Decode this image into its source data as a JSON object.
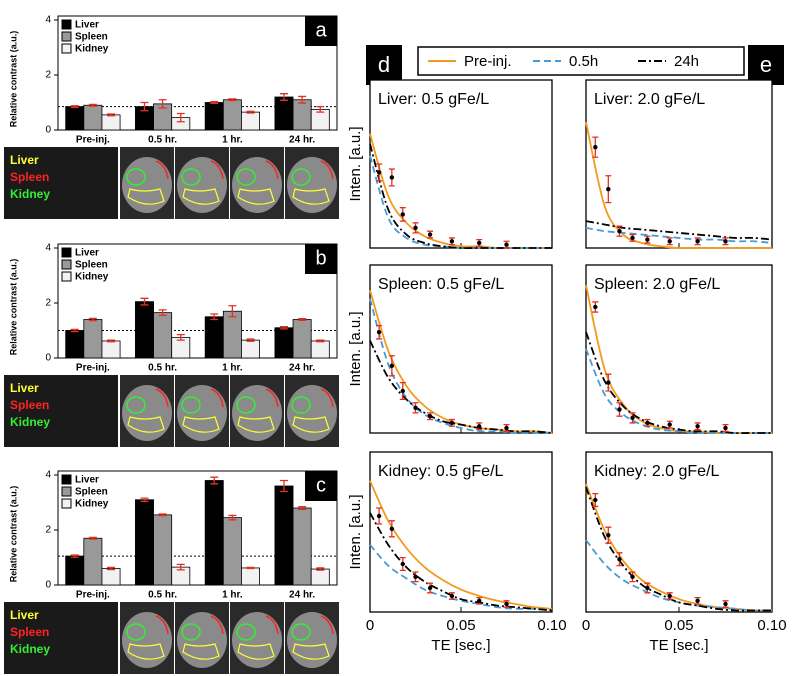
{
  "chart_data": [
    {
      "type": "bar",
      "panel_label": "a",
      "ylabel": "Relative contrast (a.u.)",
      "categories": [
        "Pre-inj.",
        "0.5 hr.",
        "1 hr.",
        "24 hr."
      ],
      "series": [
        {
          "name": "Liver",
          "color": "#000000",
          "values": [
            0.85,
            0.85,
            1.0,
            1.2
          ],
          "errors": [
            0.03,
            0.15,
            0.03,
            0.12
          ]
        },
        {
          "name": "Spleen",
          "color": "#999999",
          "values": [
            0.9,
            0.95,
            1.1,
            1.1
          ],
          "errors": [
            0.03,
            0.15,
            0.03,
            0.12
          ]
        },
        {
          "name": "Kidney",
          "color": "#f2f2f2",
          "values": [
            0.55,
            0.45,
            0.65,
            0.75
          ],
          "errors": [
            0.03,
            0.15,
            0.03,
            0.1
          ]
        }
      ],
      "reference_line": 0.85,
      "ylim": [
        0,
        4
      ],
      "yticks": [
        0,
        2,
        4
      ],
      "error_color": "#e53020",
      "image_labels": [
        {
          "text": "Liver",
          "color": "#ffff33"
        },
        {
          "text": "Spleen",
          "color": "#ff2222"
        },
        {
          "text": "Kidney",
          "color": "#33ee33"
        }
      ]
    },
    {
      "type": "bar",
      "panel_label": "b",
      "ylabel": "Relative contrast (a.u.)",
      "categories": [
        "Pre-inj.",
        "0.5 hr.",
        "1 hr.",
        "24 hr."
      ],
      "series": [
        {
          "name": "Liver",
          "color": "#000000",
          "values": [
            1.0,
            2.05,
            1.5,
            1.1
          ],
          "errors": [
            0.04,
            0.12,
            0.1,
            0.04
          ]
        },
        {
          "name": "Spleen",
          "color": "#999999",
          "values": [
            1.4,
            1.65,
            1.7,
            1.4
          ],
          "errors": [
            0.04,
            0.1,
            0.2,
            0.03
          ]
        },
        {
          "name": "Kidney",
          "color": "#f2f2f2",
          "values": [
            0.62,
            0.75,
            0.65,
            0.62
          ],
          "errors": [
            0.03,
            0.1,
            0.04,
            0.03
          ]
        }
      ],
      "reference_line": 1.0,
      "ylim": [
        0,
        4
      ],
      "yticks": [
        0,
        2,
        4
      ],
      "error_color": "#e53020",
      "image_labels": [
        {
          "text": "Liver",
          "color": "#ffff33"
        },
        {
          "text": "Spleen",
          "color": "#ff2222"
        },
        {
          "text": "Kidney",
          "color": "#33ee33"
        }
      ]
    },
    {
      "type": "bar",
      "panel_label": "c",
      "ylabel": "Relative contrast (a.u.)",
      "categories": [
        "Pre-inj.",
        "0.5 hr.",
        "1 hr.",
        "24 hr."
      ],
      "series": [
        {
          "name": "Liver",
          "color": "#000000",
          "values": [
            1.05,
            3.1,
            3.8,
            3.6
          ],
          "errors": [
            0.04,
            0.06,
            0.12,
            0.2
          ]
        },
        {
          "name": "Spleen",
          "color": "#999999",
          "values": [
            1.7,
            2.55,
            2.45,
            2.8
          ],
          "errors": [
            0.03,
            0.03,
            0.08,
            0.05
          ]
        },
        {
          "name": "Kidney",
          "color": "#f2f2f2",
          "values": [
            0.6,
            0.65,
            0.62,
            0.58
          ],
          "errors": [
            0.04,
            0.1,
            0.02,
            0.04
          ]
        }
      ],
      "reference_line": 1.05,
      "ylim": [
        0,
        4
      ],
      "yticks": [
        0,
        2,
        4
      ],
      "error_color": "#e53020",
      "image_labels": [
        {
          "text": "Liver",
          "color": "#ffff33"
        },
        {
          "text": "Spleen",
          "color": "#ff2222"
        },
        {
          "text": "Kidney",
          "color": "#33ee33"
        }
      ]
    },
    {
      "type": "line",
      "panel_labels": [
        "d",
        "e"
      ],
      "xlabel": "TE [sec.]",
      "ylabel": "Inten. [a.u.]",
      "xlim": [
        0,
        0.1
      ],
      "xticks": [
        0,
        0.05,
        {
          "value": 0.1,
          "label": "0.10"
        }
      ],
      "ylim": [
        0,
        1
      ],
      "legend": [
        {
          "name": "Pre-inj.",
          "color": "#f39a1e",
          "dash": "solid"
        },
        {
          "name": "0.5h",
          "color": "#4a9ad4",
          "dash": "dashed"
        },
        {
          "name": "24h",
          "color": "#000000",
          "dash": "dashdot"
        }
      ],
      "point_color": "#000000",
      "error_color": "#e53020",
      "x": [
        0,
        0.01,
        0.02,
        0.03,
        0.04,
        0.05,
        0.06,
        0.07,
        0.08,
        0.09,
        0.1
      ],
      "points_x": [
        0.005,
        0.012,
        0.018,
        0.025,
        0.033,
        0.045,
        0.06,
        0.075
      ],
      "panels": [
        {
          "title": "Liver: 0.5 gFe/L",
          "curves": [
            [
              0.68,
              0.31,
              0.15,
              0.07,
              0.03,
              0.01,
              0.01,
              0,
              0,
              0,
              0
            ],
            [
              0.55,
              0.18,
              0.06,
              0.02,
              0.01,
              0,
              0,
              0,
              0,
              0,
              0
            ],
            [
              0.62,
              0.23,
              0.08,
              0.03,
              0.01,
              0,
              0,
              0,
              0,
              0,
              0
            ]
          ],
          "points": [
            0.45,
            0.42,
            0.2,
            0.12,
            0.08,
            0.04,
            0.03,
            0.02
          ],
          "errors": [
            0.05,
            0.05,
            0.04,
            0.03,
            0.02,
            0.02,
            0.02,
            0.02
          ]
        },
        {
          "title": "Liver: 2.0 gFe/L",
          "curves": [
            [
              0.75,
              0.25,
              0.08,
              0.03,
              0.01,
              0,
              0,
              0,
              0,
              0,
              0
            ],
            [
              0.12,
              0.1,
              0.09,
              0.08,
              0.07,
              0.06,
              0.05,
              0.05,
              0.04,
              0.04,
              0.03
            ],
            [
              0.16,
              0.14,
              0.12,
              0.11,
              0.1,
              0.09,
              0.08,
              0.07,
              0.06,
              0.06,
              0.05
            ]
          ],
          "points": [
            0.6,
            0.35,
            0.1,
            0.06,
            0.05,
            0.04,
            0.04,
            0.04
          ],
          "errors": [
            0.06,
            0.08,
            0.03,
            0.02,
            0.02,
            0.02,
            0.02,
            0.02
          ]
        },
        {
          "title": "Spleen: 0.5 gFe/L",
          "curves": [
            [
              0.85,
              0.49,
              0.28,
              0.16,
              0.09,
              0.05,
              0.03,
              0.02,
              0.01,
              0.01,
              0
            ],
            [
              0.8,
              0.41,
              0.21,
              0.11,
              0.06,
              0.03,
              0.01,
              0.01,
              0,
              0,
              0
            ],
            [
              0.55,
              0.33,
              0.2,
              0.12,
              0.07,
              0.05,
              0.03,
              0.02,
              0.01,
              0.01,
              0
            ]
          ],
          "points": [
            0.6,
            0.4,
            0.25,
            0.15,
            0.1,
            0.06,
            0.04,
            0.03
          ],
          "errors": [
            0.04,
            0.06,
            0.05,
            0.03,
            0.02,
            0.02,
            0.02,
            0.02
          ]
        },
        {
          "title": "Spleen: 2.0 gFe/L",
          "curves": [
            [
              0.88,
              0.38,
              0.17,
              0.07,
              0.03,
              0.01,
              0.01,
              0,
              0,
              0,
              0
            ],
            [
              0.5,
              0.23,
              0.11,
              0.05,
              0.02,
              0.01,
              0,
              0,
              0,
              0,
              0
            ],
            [
              0.6,
              0.31,
              0.16,
              0.08,
              0.04,
              0.02,
              0.01,
              0.01,
              0,
              0,
              0
            ]
          ],
          "points": [
            0.75,
            0.3,
            0.14,
            0.09,
            0.06,
            0.05,
            0.04,
            0.03
          ],
          "errors": [
            0.03,
            0.05,
            0.04,
            0.03,
            0.02,
            0.02,
            0.02,
            0.02
          ]
        },
        {
          "title": "Kidney: 0.5 gFe/L",
          "curves": [
            [
              0.82,
              0.57,
              0.4,
              0.28,
              0.2,
              0.14,
              0.1,
              0.07,
              0.05,
              0.03,
              0.02
            ],
            [
              0.42,
              0.29,
              0.21,
              0.14,
              0.1,
              0.07,
              0.05,
              0.03,
              0.02,
              0.02,
              0.01
            ],
            [
              0.62,
              0.42,
              0.28,
              0.19,
              0.13,
              0.08,
              0.06,
              0.04,
              0.03,
              0.02,
              0.01
            ]
          ],
          "points": [
            0.6,
            0.52,
            0.3,
            0.22,
            0.15,
            0.1,
            0.07,
            0.05
          ],
          "errors": [
            0.05,
            0.05,
            0.04,
            0.03,
            0.03,
            0.02,
            0.02,
            0.02
          ]
        },
        {
          "title": "Kidney: 2.0 gFe/L",
          "curves": [
            [
              0.8,
              0.51,
              0.32,
              0.2,
              0.13,
              0.08,
              0.05,
              0.03,
              0.02,
              0.01,
              0.01
            ],
            [
              0.45,
              0.3,
              0.2,
              0.14,
              0.09,
              0.06,
              0.04,
              0.03,
              0.02,
              0.01,
              0.01
            ],
            [
              0.78,
              0.47,
              0.29,
              0.17,
              0.11,
              0.06,
              0.04,
              0.02,
              0.01,
              0.01,
              0.01
            ]
          ],
          "points": [
            0.7,
            0.48,
            0.33,
            0.22,
            0.15,
            0.1,
            0.07,
            0.05
          ],
          "errors": [
            0.04,
            0.05,
            0.04,
            0.03,
            0.03,
            0.02,
            0.02,
            0.02
          ]
        }
      ]
    }
  ]
}
